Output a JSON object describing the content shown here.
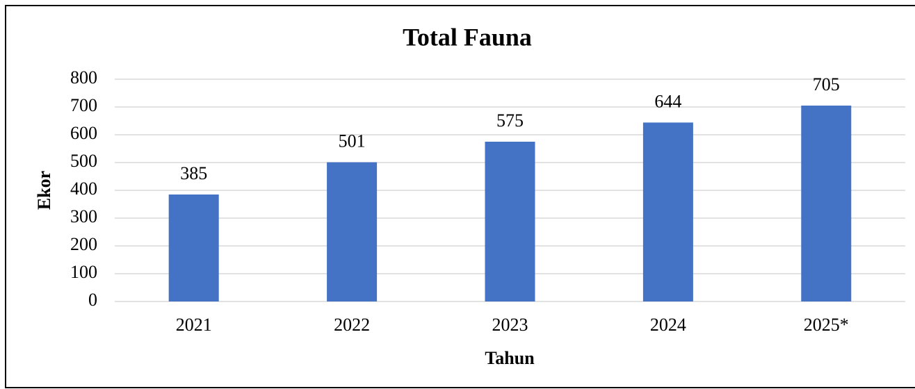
{
  "chart_data": {
    "type": "bar",
    "title": "Total Fauna",
    "x_label": "Tahun",
    "y_label": "Ekor",
    "categories": [
      "2021",
      "2022",
      "2023",
      "2024",
      "2025*"
    ],
    "values": [
      385,
      501,
      575,
      644,
      705
    ],
    "color": "#4472c4",
    "ylim": [
      0,
      800
    ],
    "yticks": [
      0,
      100,
      200,
      300,
      400,
      500,
      600,
      700,
      800
    ],
    "grid": true
  }
}
